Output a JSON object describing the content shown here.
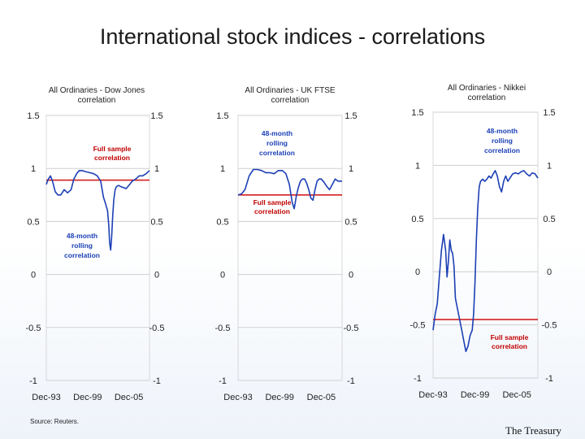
{
  "slide": {
    "title": "International stock indices - correlations",
    "source": "Source: Reuters.",
    "brand": "The Treasury"
  },
  "colors": {
    "rolling": "#1c3fb5",
    "full_sample": "#d42020",
    "annotation": "#c00000",
    "annotation_blue": "#1c3fb5",
    "grid": "#cfcfcf"
  },
  "chart_data": [
    {
      "type": "line",
      "title": [
        "All Ordinaries - Dow Jones",
        "correlation"
      ],
      "yticks": [
        1.5,
        1,
        0.5,
        0,
        -0.5,
        -1
      ],
      "ytick_labels": [
        "1.5",
        "1",
        "0.5",
        "0",
        "-0.5",
        "-1"
      ],
      "ylim": [
        -1,
        1.5
      ],
      "xlim": [
        1993.9,
        2008.9
      ],
      "xtick_labels": [
        "Dec-93",
        "Dec-99",
        "Dec-05"
      ],
      "xtick_values": [
        1993.9,
        1999.9,
        2005.9
      ],
      "full_sample": {
        "value": 0.89,
        "label": [
          "Full sample",
          "correlation"
        ]
      },
      "rolling_label": [
        "48-month",
        "rolling",
        "correlation"
      ],
      "series": [
        {
          "x": [
            1993.9,
            1994.2,
            1994.5,
            1994.8,
            1995.2,
            1995.6,
            1996.0,
            1996.5,
            1997.0,
            1997.5,
            1997.9,
            1998.3,
            1998.7,
            1999.1,
            1999.6,
            2000.2,
            2000.8,
            2001.3,
            2001.8,
            2002.2,
            2002.5,
            2002.8,
            2003.0,
            2003.1,
            2003.25,
            2003.4,
            2003.55,
            2003.7,
            2003.9,
            2004.1,
            2004.4,
            2004.7,
            2005.1,
            2005.5,
            2005.9,
            2006.4,
            2006.9,
            2007.4,
            2007.9,
            2008.4,
            2008.9
          ],
          "y": [
            0.85,
            0.9,
            0.93,
            0.88,
            0.78,
            0.75,
            0.75,
            0.8,
            0.77,
            0.8,
            0.9,
            0.95,
            0.98,
            0.98,
            0.97,
            0.96,
            0.95,
            0.93,
            0.88,
            0.73,
            0.67,
            0.6,
            0.45,
            0.3,
            0.23,
            0.35,
            0.55,
            0.7,
            0.8,
            0.83,
            0.84,
            0.83,
            0.82,
            0.81,
            0.84,
            0.88,
            0.9,
            0.93,
            0.93,
            0.95,
            0.98
          ]
        }
      ]
    },
    {
      "type": "line",
      "title": [
        "All Ordinaries - UK FTSE",
        "correlation"
      ],
      "yticks": [
        1.5,
        1,
        0.5,
        0,
        -0.5,
        -1
      ],
      "ytick_labels": [
        "1.5",
        "1",
        "0.5",
        "0",
        "-0.5",
        "-1"
      ],
      "ylim": [
        -1,
        1.5
      ],
      "xlim": [
        1993.9,
        2008.9
      ],
      "xtick_labels": [
        "Dec-93",
        "Dec-99",
        "Dec-05"
      ],
      "xtick_values": [
        1993.9,
        1999.9,
        2005.9
      ],
      "full_sample": {
        "value": 0.75,
        "label": [
          "Full sample",
          "correlation"
        ]
      },
      "rolling_label": [
        "48-month",
        "rolling",
        "correlation"
      ],
      "series": [
        {
          "x": [
            1993.9,
            1994.4,
            1994.9,
            1995.5,
            1996.1,
            1996.7,
            1997.3,
            1997.9,
            1998.5,
            1999.1,
            1999.7,
            2000.3,
            2000.8,
            2001.3,
            2001.7,
            2002.0,
            2002.3,
            2002.6,
            2002.9,
            2003.2,
            2003.5,
            2003.8,
            2004.1,
            2004.4,
            2004.7,
            2005.0,
            2005.3,
            2005.6,
            2005.9,
            2006.3,
            2006.7,
            2007.1,
            2007.5,
            2007.9,
            2008.3,
            2008.9
          ],
          "y": [
            0.75,
            0.76,
            0.8,
            0.93,
            0.99,
            0.99,
            0.98,
            0.96,
            0.96,
            0.95,
            0.98,
            0.98,
            0.95,
            0.85,
            0.68,
            0.62,
            0.74,
            0.82,
            0.88,
            0.9,
            0.9,
            0.86,
            0.8,
            0.72,
            0.7,
            0.8,
            0.88,
            0.9,
            0.9,
            0.87,
            0.83,
            0.8,
            0.85,
            0.9,
            0.88,
            0.88
          ]
        }
      ]
    },
    {
      "type": "line",
      "title": [
        "All Ordinaries - Nikkei",
        "correlation"
      ],
      "yticks": [
        1.5,
        1,
        0.5,
        0,
        -0.5,
        -1
      ],
      "ytick_labels": [
        "1.5",
        "1",
        "0.5",
        "0",
        "-0.5",
        "-1"
      ],
      "ylim": [
        -1,
        1.5
      ],
      "xlim": [
        1993.9,
        2008.9
      ],
      "xtick_labels": [
        "Dec-93",
        "Dec-99",
        "Dec-05"
      ],
      "xtick_values": [
        1993.9,
        1999.9,
        2005.9
      ],
      "full_sample": {
        "value": -0.45,
        "label": [
          "Full sample",
          "correlation"
        ]
      },
      "rolling_label": [
        "48-month",
        "rolling",
        "correlation"
      ],
      "series": [
        {
          "x": [
            1993.9,
            1994.2,
            1994.5,
            1994.8,
            1995.1,
            1995.4,
            1995.7,
            1995.9,
            1996.1,
            1996.3,
            1996.5,
            1996.7,
            1996.9,
            1997.1,
            1997.4,
            1997.7,
            1998.0,
            1998.3,
            1998.6,
            1998.9,
            1999.2,
            1999.5,
            1999.7,
            1999.9,
            2000.1,
            2000.3,
            2000.5,
            2000.7,
            2001.0,
            2001.3,
            2001.6,
            2001.9,
            2002.2,
            2002.5,
            2002.8,
            2003.1,
            2003.4,
            2003.7,
            2004.0,
            2004.3,
            2004.6,
            2004.9,
            2005.3,
            2005.7,
            2006.1,
            2006.5,
            2006.9,
            2007.3,
            2007.7,
            2008.1,
            2008.5,
            2008.9
          ],
          "y": [
            -0.55,
            -0.4,
            -0.3,
            -0.05,
            0.2,
            0.35,
            0.2,
            -0.05,
            0.1,
            0.3,
            0.2,
            0.17,
            0.05,
            -0.25,
            -0.35,
            -0.45,
            -0.55,
            -0.65,
            -0.75,
            -0.7,
            -0.6,
            -0.55,
            -0.4,
            -0.1,
            0.3,
            0.6,
            0.8,
            0.85,
            0.87,
            0.85,
            0.87,
            0.9,
            0.88,
            0.92,
            0.95,
            0.9,
            0.8,
            0.75,
            0.85,
            0.9,
            0.85,
            0.88,
            0.92,
            0.93,
            0.92,
            0.94,
            0.95,
            0.92,
            0.9,
            0.93,
            0.92,
            0.88
          ]
        }
      ]
    }
  ]
}
